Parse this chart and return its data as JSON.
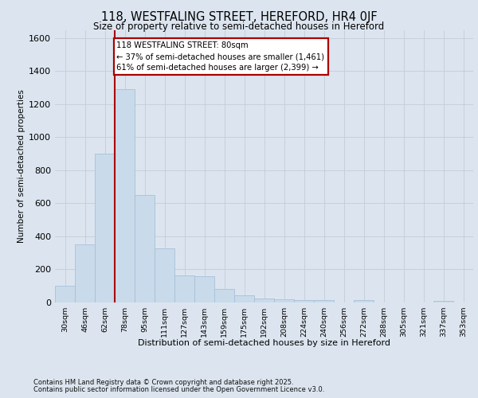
{
  "title_line1": "118, WESTFALING STREET, HEREFORD, HR4 0JF",
  "title_line2": "Size of property relative to semi-detached houses in Hereford",
  "xlabel": "Distribution of semi-detached houses by size in Hereford",
  "ylabel": "Number of semi-detached properties",
  "annotation_line1": "118 WESTFALING STREET: 80sqm",
  "annotation_line2": "← 37% of semi-detached houses are smaller (1,461)",
  "annotation_line3": "61% of semi-detached houses are larger (2,399) →",
  "footer_line1": "Contains HM Land Registry data © Crown copyright and database right 2025.",
  "footer_line2": "Contains public sector information licensed under the Open Government Licence v3.0.",
  "bin_labels": [
    "30sqm",
    "46sqm",
    "62sqm",
    "78sqm",
    "95sqm",
    "111sqm",
    "127sqm",
    "143sqm",
    "159sqm",
    "175sqm",
    "192sqm",
    "208sqm",
    "224sqm",
    "240sqm",
    "256sqm",
    "272sqm",
    "288sqm",
    "305sqm",
    "321sqm",
    "337sqm",
    "353sqm"
  ],
  "bar_values": [
    100,
    350,
    900,
    1290,
    650,
    330,
    165,
    160,
    80,
    45,
    25,
    20,
    15,
    15,
    0,
    15,
    0,
    0,
    0,
    10,
    0
  ],
  "bar_color": "#c9daea",
  "bar_edge_color": "#a8c0d8",
  "vline_x": 2.5,
  "vline_color": "#aa0000",
  "annotation_box_edgecolor": "#aa0000",
  "ylim_max": 1650,
  "yticks": [
    0,
    200,
    400,
    600,
    800,
    1000,
    1200,
    1400,
    1600
  ],
  "grid_color": "#c2cdd8",
  "bg_color": "#dce5ef"
}
